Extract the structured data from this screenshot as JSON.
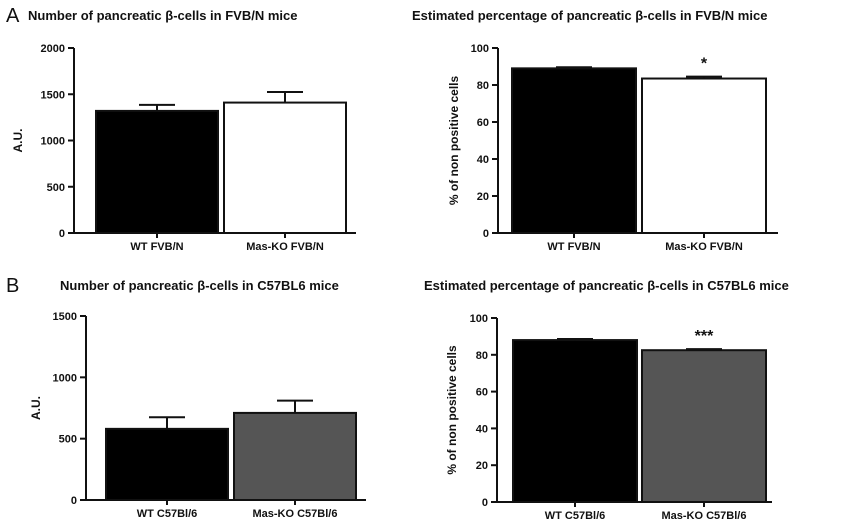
{
  "panel_labels": [
    "A",
    "B"
  ],
  "colors": {
    "axis": "#111111",
    "black_bar": "#000000",
    "white_bar": "#ffffff",
    "grey_bar": "#555555"
  },
  "chart_data": [
    {
      "type": "bar",
      "title": "Number of pancreatic β-cells in FVB/N mice",
      "xlabel": "",
      "ylabel": "A.U.",
      "ylim": [
        0,
        2000
      ],
      "yticks": [
        0,
        500,
        1000,
        1500,
        2000
      ],
      "categories": [
        "WT FVB/N",
        "Mas-KO FVB/N"
      ],
      "values": [
        1320,
        1410
      ],
      "errors": [
        65,
        115
      ],
      "bar_colors": [
        "#000000",
        "#ffffff"
      ],
      "significance": [
        "",
        ""
      ]
    },
    {
      "type": "bar",
      "title": "Estimated percentage of pancreatic β-cells in FVB/N mice",
      "xlabel": "",
      "ylabel": "% of non positive cells",
      "ylim": [
        0,
        100
      ],
      "yticks": [
        0,
        20,
        40,
        60,
        80,
        100
      ],
      "categories": [
        "WT FVB/N",
        "Mas-KO FVB/N"
      ],
      "values": [
        89,
        83.5
      ],
      "errors": [
        0.6,
        1.0
      ],
      "bar_colors": [
        "#000000",
        "#ffffff"
      ],
      "significance": [
        "",
        "*"
      ]
    },
    {
      "type": "bar",
      "title": "Number of pancreatic β-cells in C57BL6 mice",
      "xlabel": "",
      "ylabel": "A.U.",
      "ylim": [
        0,
        1500
      ],
      "yticks": [
        0,
        500,
        1000,
        1500
      ],
      "categories": [
        "WT C57Bl/6",
        "Mas-KO C57Bl/6"
      ],
      "values": [
        580,
        710
      ],
      "errors": [
        95,
        100
      ],
      "bar_colors": [
        "#000000",
        "#555555"
      ],
      "significance": [
        "",
        ""
      ]
    },
    {
      "type": "bar",
      "title": "Estimated percentage of pancreatic β-cells in C57BL6 mice",
      "xlabel": "",
      "ylabel": "% of non positive cells",
      "ylim": [
        0,
        100
      ],
      "yticks": [
        0,
        20,
        40,
        60,
        80,
        100
      ],
      "categories": [
        "WT C57Bl/6",
        "Mas-KO C57Bl/6"
      ],
      "values": [
        88,
        82.5
      ],
      "errors": [
        0.6,
        0.6
      ],
      "bar_colors": [
        "#000000",
        "#555555"
      ],
      "significance": [
        "",
        "***"
      ]
    }
  ]
}
